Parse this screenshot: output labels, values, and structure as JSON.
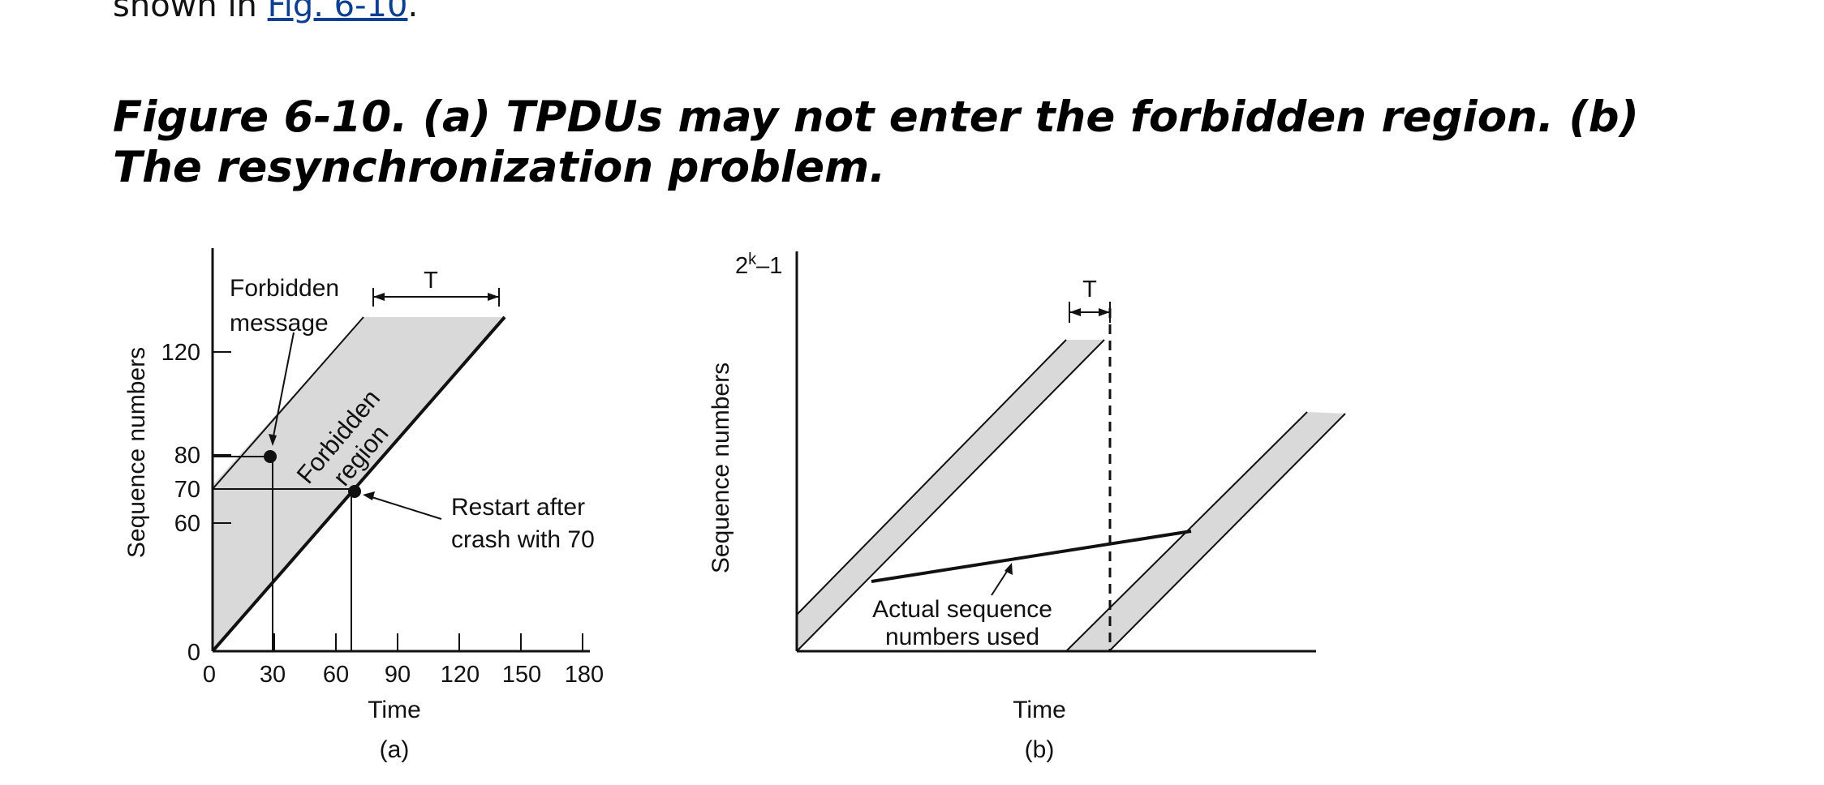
{
  "intro": {
    "prefix": "shown in ",
    "link_text": "Fig. 6-10",
    "suffix": "."
  },
  "caption": "Figure 6-10. (a) TPDUs may not enter the forbidden region. (b) The resynchronization problem.",
  "figure_a": {
    "label": "(a)",
    "x_axis_label": "Time",
    "y_axis_label": "Sequence numbers",
    "x_ticks": [
      "0",
      "30",
      "60",
      "90",
      "120",
      "150",
      "180"
    ],
    "y_ticks": [
      "0",
      "60",
      "70",
      "80",
      "120"
    ],
    "t_label": "T",
    "forbidden_message_label_1": "Forbidden",
    "forbidden_message_label_2": "message",
    "forbidden_region_label_1": "Forbidden",
    "forbidden_region_label_2": "region",
    "restart_label_1": "Restart after",
    "restart_label_2": "crash with 70"
  },
  "figure_b": {
    "label": "(b)",
    "x_axis_label": "Time",
    "y_axis_label": "Sequence numbers",
    "y_top_label_base": "2",
    "y_top_label_sup": "k",
    "y_top_label_tail": "–1",
    "t_label": "T",
    "actual_label_1": "Actual sequence",
    "actual_label_2": "numbers used"
  },
  "colors": {
    "shade": "#d9d9d9",
    "line": "#111111",
    "link": "#0b3f8f"
  }
}
